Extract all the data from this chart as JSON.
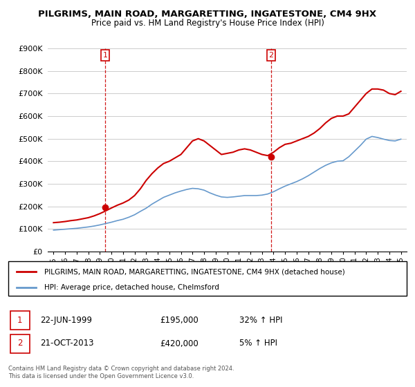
{
  "title": "PILGRIMS, MAIN ROAD, MARGARETTING, INGATESTONE, CM4 9HX",
  "subtitle": "Price paid vs. HM Land Registry's House Price Index (HPI)",
  "red_label": "PILGRIMS, MAIN ROAD, MARGARETTING, INGATESTONE, CM4 9HX (detached house)",
  "blue_label": "HPI: Average price, detached house, Chelmsford",
  "sale1_date": "22-JUN-1999",
  "sale1_price": "£195,000",
  "sale1_hpi": "32% ↑ HPI",
  "sale2_date": "21-OCT-2013",
  "sale2_price": "£420,000",
  "sale2_hpi": "5% ↑ HPI",
  "footer": "Contains HM Land Registry data © Crown copyright and database right 2024.\nThis data is licensed under the Open Government Licence v3.0.",
  "ylim": [
    0,
    900000
  ],
  "yticks": [
    0,
    100000,
    200000,
    300000,
    400000,
    500000,
    600000,
    700000,
    800000,
    900000
  ],
  "ytick_labels": [
    "£0",
    "£100K",
    "£200K",
    "£300K",
    "£400K",
    "£500K",
    "£600K",
    "£700K",
    "£800K",
    "£900K"
  ],
  "red_color": "#cc0000",
  "blue_color": "#6699cc",
  "vline_color": "#cc0000",
  "grid_color": "#cccccc",
  "bg_color": "#ffffff",
  "sale1_x": 1999.47,
  "sale2_x": 2013.8,
  "sale1_y": 195000,
  "sale2_y": 420000,
  "x_years": [
    1995,
    1995.5,
    1996,
    1996.5,
    1997,
    1997.5,
    1998,
    1998.5,
    1999,
    1999.5,
    2000,
    2000.5,
    2001,
    2001.5,
    2002,
    2002.5,
    2003,
    2003.5,
    2004,
    2004.5,
    2005,
    2005.5,
    2006,
    2006.5,
    2007,
    2007.5,
    2008,
    2008.5,
    2009,
    2009.5,
    2010,
    2010.5,
    2011,
    2011.5,
    2012,
    2012.5,
    2013,
    2013.5,
    2014,
    2014.5,
    2015,
    2015.5,
    2016,
    2016.5,
    2017,
    2017.5,
    2018,
    2018.5,
    2019,
    2019.5,
    2020,
    2020.5,
    2021,
    2021.5,
    2022,
    2022.5,
    2023,
    2023.5,
    2024,
    2024.5,
    2025
  ],
  "red_values": [
    128000,
    130000,
    133000,
    137000,
    140000,
    145000,
    150000,
    158000,
    168000,
    180000,
    193000,
    205000,
    215000,
    228000,
    248000,
    278000,
    315000,
    345000,
    370000,
    390000,
    400000,
    415000,
    430000,
    460000,
    490000,
    500000,
    490000,
    470000,
    450000,
    430000,
    435000,
    440000,
    450000,
    455000,
    450000,
    440000,
    430000,
    425000,
    440000,
    460000,
    475000,
    480000,
    490000,
    500000,
    510000,
    525000,
    545000,
    570000,
    590000,
    600000,
    600000,
    610000,
    640000,
    670000,
    700000,
    720000,
    720000,
    715000,
    700000,
    695000,
    710000
  ],
  "blue_values": [
    95000,
    97000,
    99000,
    101000,
    103000,
    106000,
    109000,
    113000,
    118000,
    124000,
    130000,
    137000,
    143000,
    152000,
    163000,
    178000,
    192000,
    210000,
    225000,
    240000,
    250000,
    260000,
    268000,
    275000,
    280000,
    278000,
    272000,
    260000,
    250000,
    242000,
    240000,
    242000,
    245000,
    248000,
    248000,
    248000,
    250000,
    255000,
    265000,
    278000,
    290000,
    300000,
    310000,
    322000,
    336000,
    352000,
    368000,
    382000,
    393000,
    400000,
    402000,
    420000,
    445000,
    470000,
    498000,
    510000,
    505000,
    498000,
    492000,
    490000,
    498000
  ],
  "xlim_left": 1994.5,
  "xlim_right": 2025.5
}
